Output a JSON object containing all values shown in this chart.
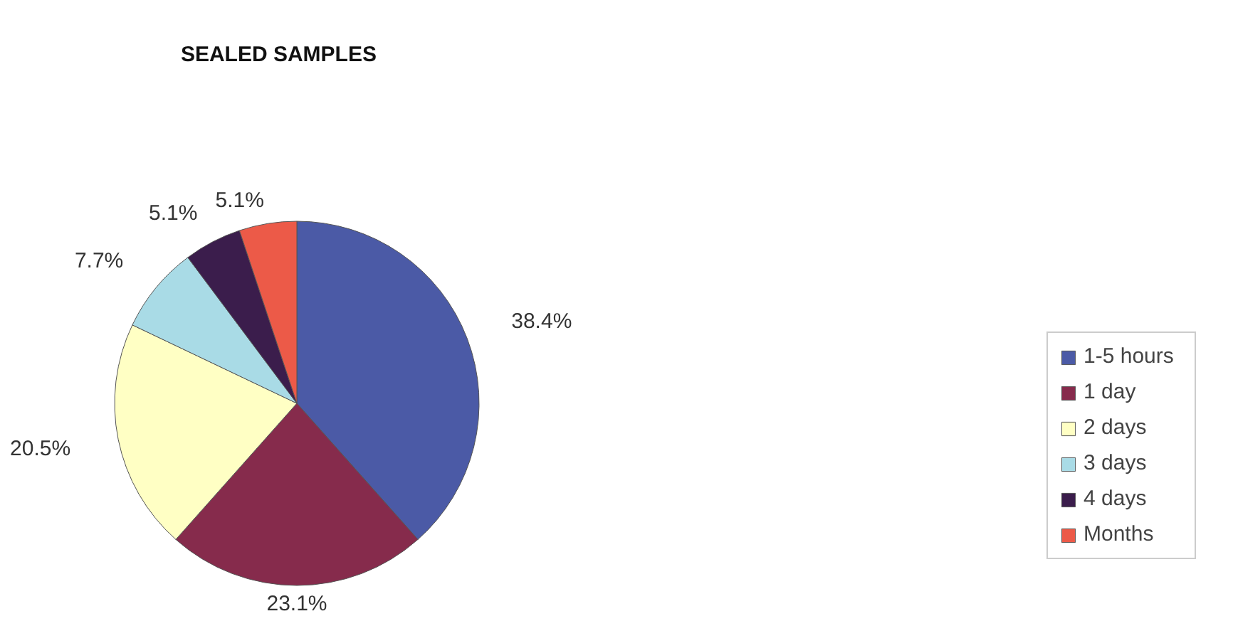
{
  "chart_data": {
    "type": "pie",
    "title": "SEALED SAMPLES",
    "categories": [
      "1-5 hours",
      "1 day",
      "2 days",
      "3 days",
      "4 days",
      "Months"
    ],
    "values": [
      38.4,
      23.1,
      20.5,
      7.7,
      5.1,
      5.1
    ],
    "value_labels": [
      "38.4%",
      "23.1%",
      "20.5%",
      "7.7%",
      "5.1%",
      "5.1%"
    ],
    "colors": [
      "#4b5aa6",
      "#862b4c",
      "#ffffc4",
      "#a9dbe6",
      "#3b1d4c",
      "#ec5a48"
    ],
    "legend": "right"
  }
}
